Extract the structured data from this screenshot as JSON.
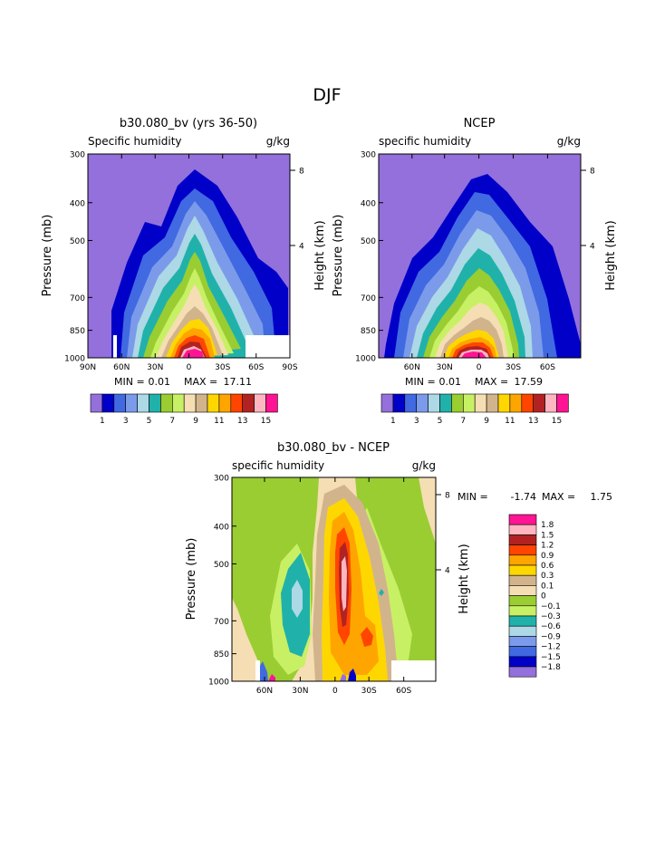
{
  "page": {
    "title": "DJF"
  },
  "chart_data": [
    {
      "type": "contour",
      "title": "b30.080_bv (yrs 36-50)",
      "subtitle_left": "Specific humidity",
      "subtitle_right": "g/kg",
      "ylabel": "Pressure (mb)",
      "ylabel_right": "Height (km)",
      "ylim": [
        1000,
        300
      ],
      "yscale": "log",
      "yticks": [
        "300",
        "400",
        "500",
        "700",
        "850",
        "1000"
      ],
      "height_ticks": [
        "8",
        "4"
      ],
      "xlim": [
        90,
        -90
      ],
      "xticks": [
        "90N",
        "60N",
        "30N",
        "0",
        "30S",
        "60S",
        "90S"
      ],
      "x_direction": "north-to-south",
      "min_label": "MIN =",
      "min": "0.01",
      "max_label": "MAX =",
      "max": "17.11",
      "contour_levels": [
        1,
        2,
        3,
        4,
        5,
        6,
        7,
        8,
        9,
        10,
        11,
        12,
        13,
        14,
        15
      ],
      "colorbar_labels": [
        "1",
        "3",
        "5",
        "7",
        "9",
        "11",
        "13",
        "15"
      ],
      "colors": [
        "#9370DB",
        "#0000C8",
        "#4169E1",
        "#7B9BEA",
        "#ADD8E6",
        "#20B2AA",
        "#9ACD32",
        "#C8F064",
        "#F5DEB3",
        "#D2B48C",
        "#FFD700",
        "#FFA500",
        "#FF4500",
        "#B22222",
        "#FFB6C1",
        "#FF1493"
      ]
    },
    {
      "type": "contour",
      "title": "NCEP",
      "subtitle_left": "specific humidity",
      "subtitle_right": "g/kg",
      "ylabel": "Pressure (mb)",
      "ylabel_right": "Height (km)",
      "ylim": [
        1000,
        300
      ],
      "yscale": "log",
      "yticks": [
        "300",
        "400",
        "500",
        "700",
        "850",
        "1000"
      ],
      "height_ticks": [
        "8",
        "4"
      ],
      "xticks": [
        "60N",
        "30N",
        "0",
        "30S",
        "60S"
      ],
      "min_label": "MIN =",
      "min": "0.01",
      "max_label": "MAX =",
      "max": "17.59",
      "contour_levels": [
        1,
        2,
        3,
        4,
        5,
        6,
        7,
        8,
        9,
        10,
        11,
        12,
        13,
        14,
        15
      ],
      "colorbar_labels": [
        "1",
        "3",
        "5",
        "7",
        "9",
        "11",
        "13",
        "15"
      ],
      "colors": [
        "#9370DB",
        "#0000C8",
        "#4169E1",
        "#7B9BEA",
        "#ADD8E6",
        "#20B2AA",
        "#9ACD32",
        "#C8F064",
        "#F5DEB3",
        "#D2B48C",
        "#FFD700",
        "#FFA500",
        "#FF4500",
        "#B22222",
        "#FFB6C1",
        "#FF1493"
      ]
    },
    {
      "type": "contour",
      "title": "b30.080_bv - NCEP",
      "subtitle_left": "specific humidity",
      "subtitle_right": "g/kg",
      "ylabel": "Pressure (mb)",
      "ylabel_right": "Height (km)",
      "ylim": [
        1000,
        300
      ],
      "yscale": "log",
      "yticks": [
        "300",
        "400",
        "500",
        "700",
        "850",
        "1000"
      ],
      "height_ticks": [
        "8",
        "4"
      ],
      "xticks": [
        "60N",
        "30N",
        "0",
        "30S",
        "60S"
      ],
      "min_label": "MIN =",
      "min": "-1.74",
      "max_label": "MAX =",
      "max": "1.75",
      "contour_levels": [
        -1.8,
        -1.5,
        -1.2,
        -0.9,
        -0.6,
        -0.3,
        -0.1,
        0,
        0.1,
        0.3,
        0.6,
        0.9,
        1.2,
        1.5,
        1.8
      ],
      "colorbar_labels": [
        "1.8",
        "1.5",
        "1.2",
        "0.9",
        "0.6",
        "0.3",
        "0.1",
        "0",
        "−0.1",
        "−0.3",
        "−0.6",
        "−0.9",
        "−1.2",
        "−1.5",
        "−1.8"
      ],
      "colors": [
        "#FF1493",
        "#FFB6C1",
        "#B22222",
        "#FF4500",
        "#FFA500",
        "#FFD700",
        "#D2B48C",
        "#F5DEB3",
        "#9ACD32",
        "#C8F064",
        "#20B2AA",
        "#ADD8E6",
        "#7B9BEA",
        "#4169E1",
        "#0000C8",
        "#9370DB"
      ]
    }
  ]
}
